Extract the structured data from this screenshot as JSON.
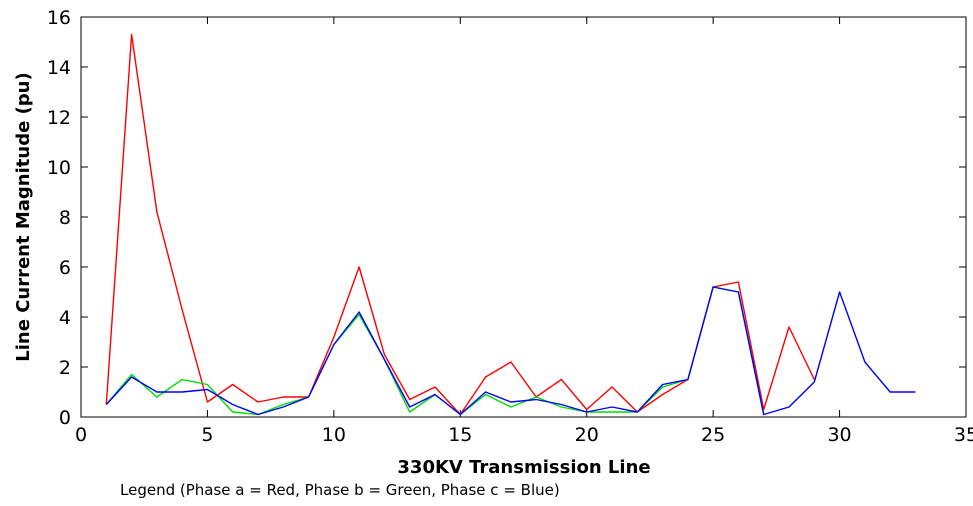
{
  "chart_data": {
    "type": "line",
    "title": "",
    "xlabel": "330KV Transmission Line",
    "ylabel": "Line Current Magnitude (pu)",
    "xlim": [
      0,
      35
    ],
    "ylim": [
      0,
      16
    ],
    "xticks": [
      0,
      5,
      10,
      15,
      20,
      25,
      30,
      35
    ],
    "xtick_labels": [
      "0",
      "5",
      "10",
      "15",
      "20",
      "25",
      "30",
      "35"
    ],
    "yticks": [
      0,
      2,
      4,
      6,
      8,
      10,
      12,
      14,
      16
    ],
    "ytick_labels": [
      "0",
      "2",
      "4",
      "6",
      "8",
      "10",
      "12",
      "14",
      "16"
    ],
    "grid": false,
    "legend_text": "Legend (Phase a = Red, Phase b = Green, Phase c = Blue)",
    "series": [
      {
        "color": "#ff0000",
        "x": [
          1,
          2,
          3,
          4,
          5,
          6,
          7,
          8,
          9,
          10,
          11,
          12,
          13,
          14,
          15,
          16,
          17,
          18,
          19,
          20,
          21,
          22,
          23,
          24,
          25,
          26,
          27,
          28,
          29
        ],
        "y": [
          0.5,
          15.3,
          8.2,
          4.3,
          0.6,
          1.3,
          0.6,
          0.8,
          0.8,
          3.2,
          6.0,
          2.5,
          0.7,
          1.2,
          0.1,
          1.6,
          2.2,
          0.8,
          1.5,
          0.3,
          1.2,
          0.2,
          0.9,
          1.5,
          5.2,
          5.4,
          0.3,
          3.6,
          1.5
        ]
      },
      {
        "color": "#00dd00",
        "x": [
          1,
          2,
          3,
          4,
          5,
          6,
          7,
          8,
          9,
          10,
          11,
          12,
          13,
          14,
          15,
          16,
          17,
          18,
          19,
          20,
          21,
          22,
          23,
          24,
          25,
          26,
          27
        ],
        "y": [
          0.5,
          1.7,
          0.8,
          1.5,
          1.3,
          0.2,
          0.1,
          0.5,
          0.8,
          2.9,
          4.1,
          2.3,
          0.2,
          0.9,
          0.1,
          0.9,
          0.4,
          0.8,
          0.4,
          0.2,
          0.2,
          0.2,
          1.2,
          1.5,
          5.2,
          5.0,
          0.1
        ]
      },
      {
        "color": "#0000ff",
        "x": [
          1,
          2,
          3,
          4,
          5,
          6,
          7,
          8,
          9,
          10,
          11,
          12,
          13,
          14,
          15,
          16,
          17,
          18,
          19,
          20,
          21,
          22,
          23,
          24,
          25,
          26,
          27,
          28,
          29,
          30,
          31,
          32,
          33
        ],
        "y": [
          0.5,
          1.6,
          1.0,
          1.0,
          1.1,
          0.5,
          0.1,
          0.4,
          0.8,
          2.9,
          4.2,
          2.3,
          0.4,
          0.9,
          0.1,
          1.0,
          0.6,
          0.7,
          0.5,
          0.2,
          0.4,
          0.2,
          1.3,
          1.5,
          5.2,
          5.0,
          0.1,
          0.4,
          1.4,
          5.0,
          2.2,
          1.0,
          1.0
        ]
      }
    ]
  }
}
